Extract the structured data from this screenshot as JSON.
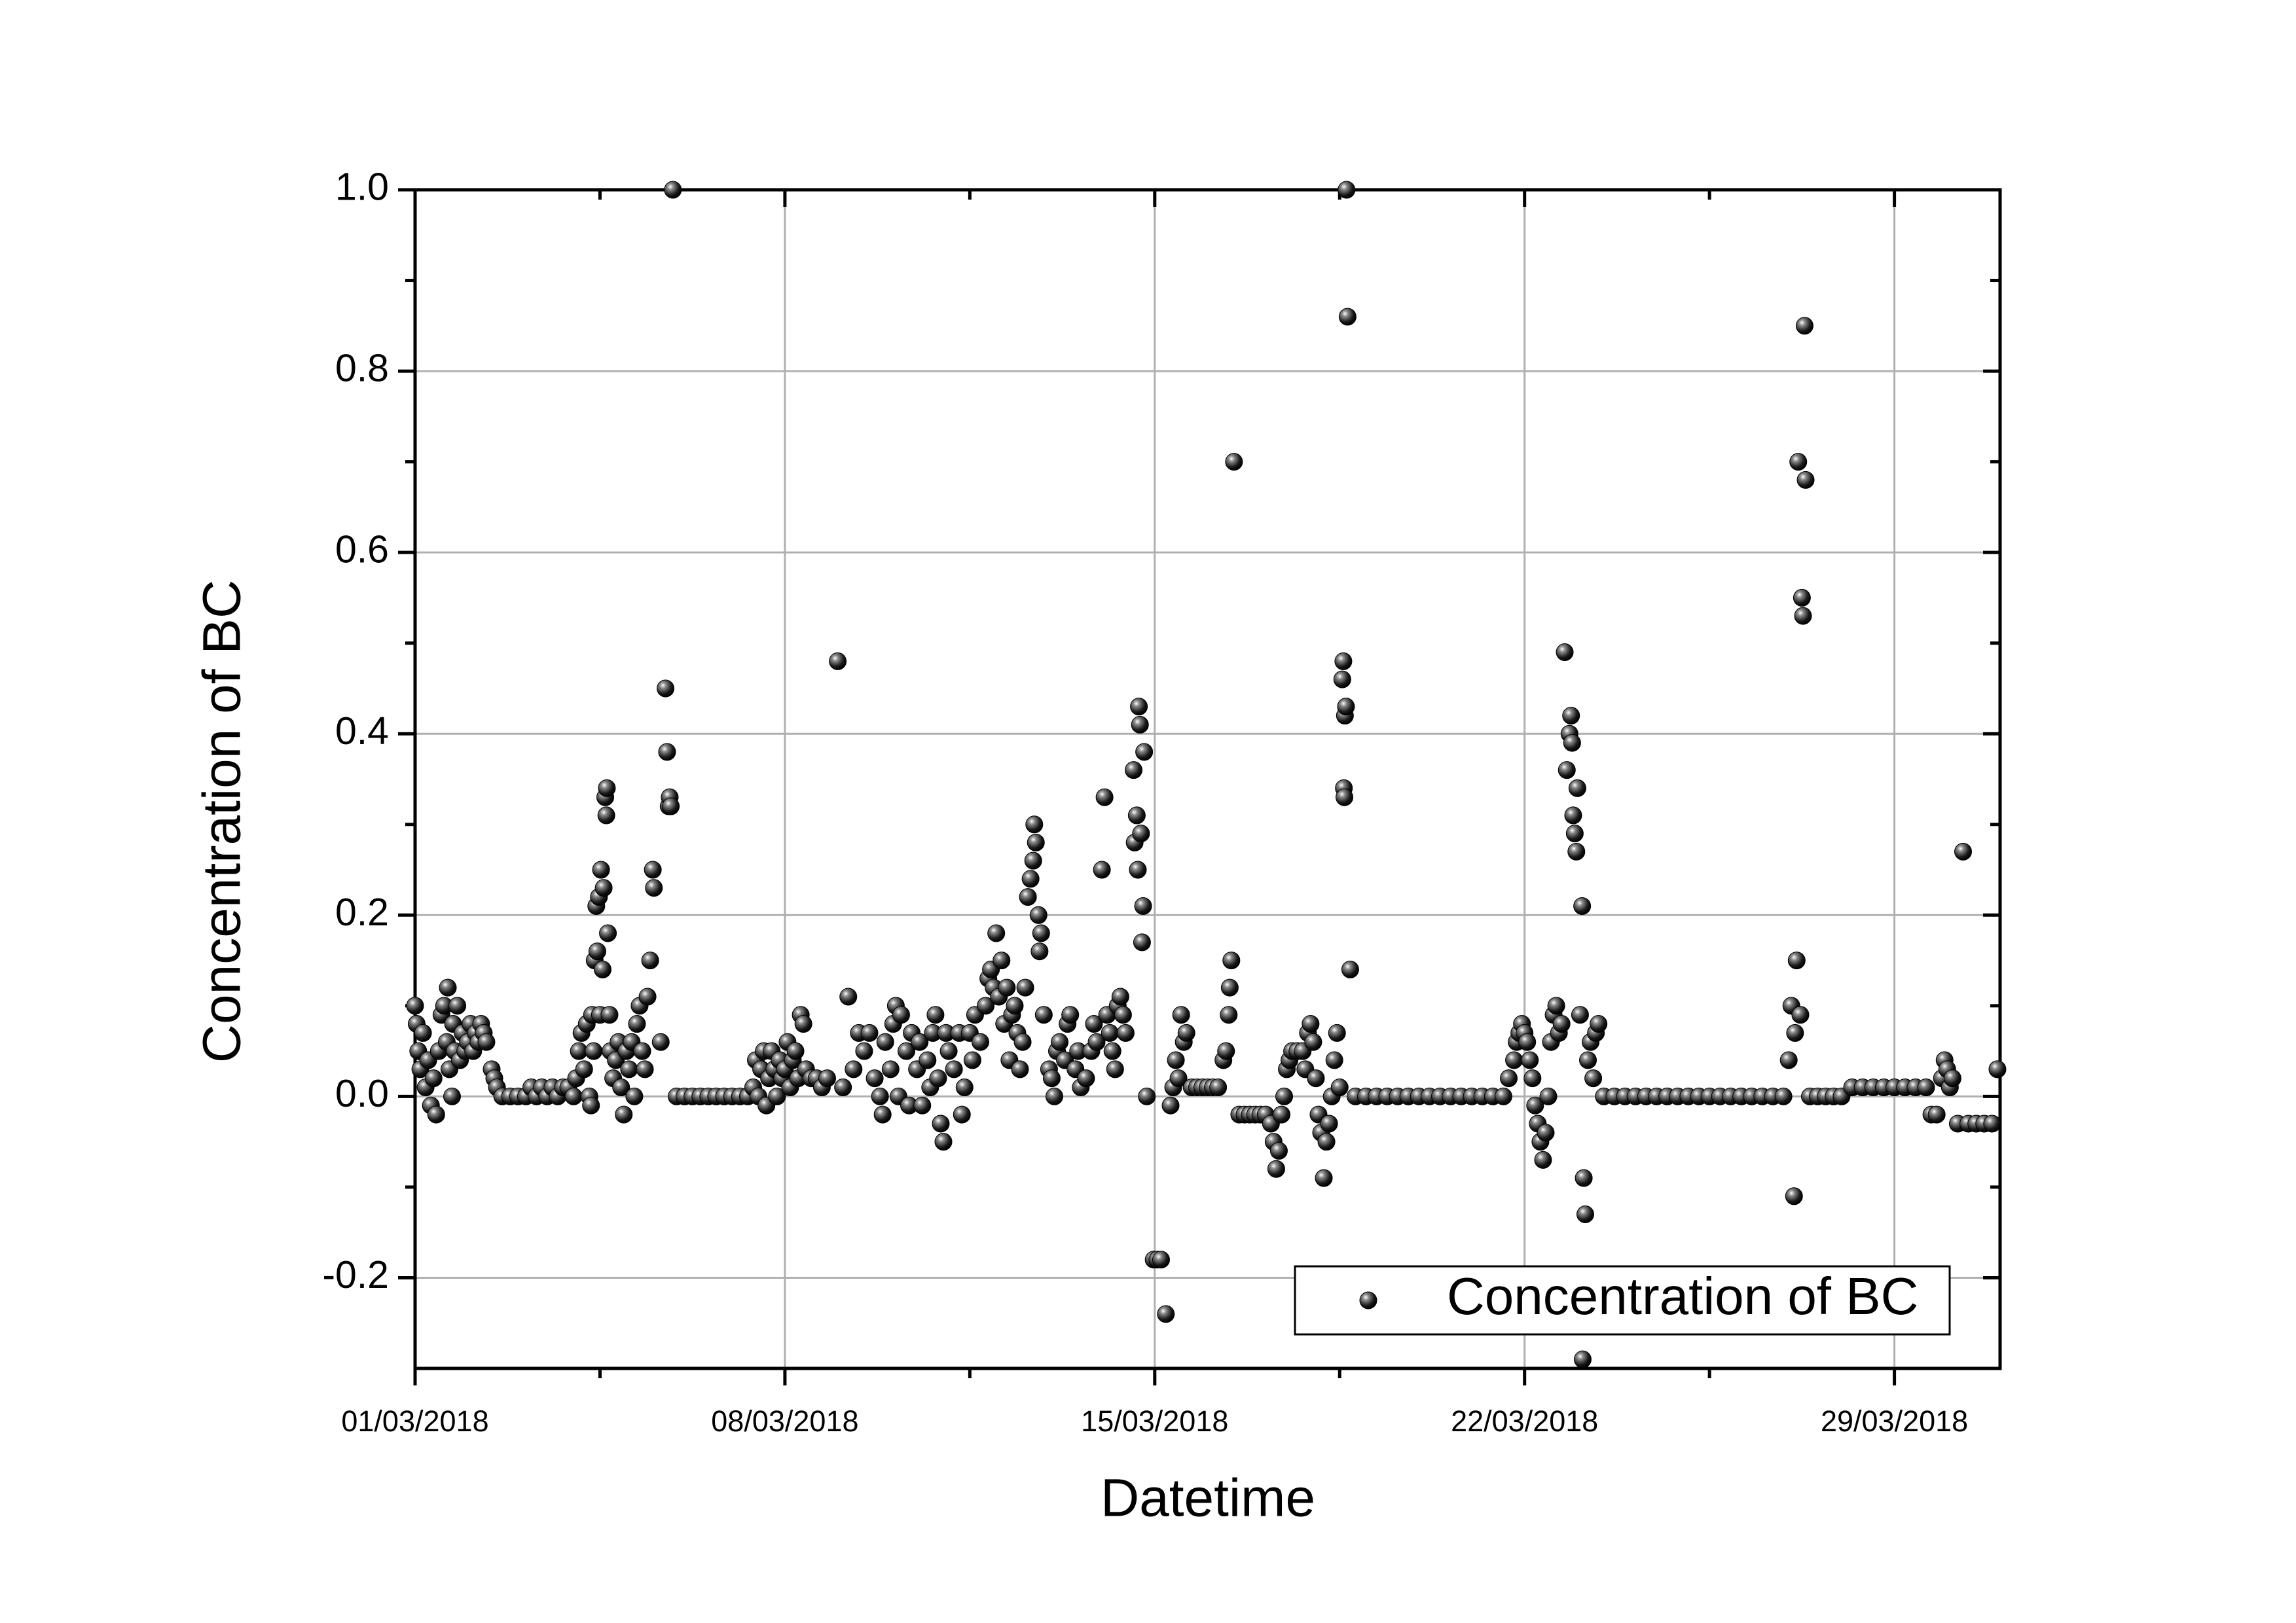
{
  "chart_data": {
    "type": "scatter",
    "xlabel": "Datetime",
    "ylabel": "Concentration of BC",
    "xlim": [
      0,
      30
    ],
    "ylim": [
      -0.3,
      1.0
    ],
    "xticks": [
      {
        "value": 0,
        "label": "01/03/2018"
      },
      {
        "value": 7,
        "label": "08/03/2018"
      },
      {
        "value": 14,
        "label": "15/03/2018"
      },
      {
        "value": 21,
        "label": "22/03/2018"
      },
      {
        "value": 28,
        "label": "29/03/2018"
      }
    ],
    "yticks": [
      -0.2,
      {
        "value": 0,
        "label": "0.0"
      },
      0.2,
      0.4,
      0.6,
      0.8,
      {
        "value": 1,
        "label": "1.0"
      }
    ],
    "grid": true,
    "legend": "lower right",
    "series": [
      {
        "name": "Concentration of BC",
        "color": "#000000",
        "x": [
          0,
          0.03,
          0.06,
          0.1,
          0.15,
          0.2,
          0.25,
          0.3,
          0.35,
          0.4,
          0.45,
          0.5,
          0.55,
          0.6,
          0.62,
          0.65,
          0.7,
          0.72,
          0.75,
          0.8,
          0.85,
          0.9,
          0.95,
          1.0,
          1.05,
          1.1,
          1.15,
          1.2,
          1.25,
          1.3,
          1.35,
          1.45,
          1.5,
          1.55,
          1.65,
          1.8,
          1.95,
          2.1,
          2.2,
          2.3,
          2.4,
          2.5,
          2.6,
          2.7,
          2.8,
          2.9,
          3.0,
          3.05,
          3.1,
          3.15,
          3.2,
          3.25,
          3.3,
          3.33,
          3.35,
          3.38,
          3.4,
          3.43,
          3.45,
          3.48,
          3.5,
          3.52,
          3.55,
          3.57,
          3.6,
          3.62,
          3.63,
          3.65,
          3.68,
          3.7,
          3.75,
          3.8,
          3.85,
          3.9,
          3.95,
          4.0,
          4.05,
          4.1,
          4.15,
          4.2,
          4.25,
          4.3,
          4.35,
          4.4,
          4.45,
          4.5,
          4.52,
          4.74,
          4.77,
          4.8,
          4.82,
          4.65,
          4.84,
          4.88,
          4.95,
          5.1,
          5.25,
          5.4,
          5.55,
          5.7,
          5.85,
          6.0,
          6.15,
          6.3,
          6.4,
          6.45,
          6.5,
          6.55,
          6.6,
          6.65,
          6.7,
          6.75,
          6.8,
          6.85,
          6.9,
          6.95,
          7.0,
          7.05,
          7.1,
          7.15,
          7.2,
          7.25,
          7.3,
          7.35,
          7.4,
          7.5,
          7.6,
          7.7,
          7.8,
          8.0,
          8.1,
          8.2,
          8.3,
          8.4,
          8.5,
          8.6,
          8.7,
          8.8,
          8.85,
          8.9,
          9.0,
          9.05,
          9.1,
          9.15,
          9.2,
          9.3,
          9.35,
          9.4,
          9.5,
          9.55,
          9.6,
          9.7,
          9.75,
          9.8,
          9.85,
          9.9,
          9.95,
          10.0,
          10.05,
          10.1,
          10.2,
          10.3,
          10.35,
          10.4,
          10.5,
          10.55,
          10.6,
          10.7,
          10.8,
          10.85,
          10.9,
          10.95,
          11.0,
          11.05,
          11.1,
          11.15,
          11.2,
          11.25,
          11.3,
          11.35,
          11.4,
          11.45,
          11.5,
          11.55,
          11.6,
          11.65,
          11.7,
          11.72,
          11.75,
          11.8,
          11.82,
          11.85,
          11.9,
          12.0,
          12.05,
          12.1,
          12.15,
          12.2,
          12.3,
          12.35,
          12.4,
          12.5,
          12.55,
          12.6,
          12.7,
          12.8,
          12.85,
          12.9,
          13.0,
          13.05,
          13.1,
          13.15,
          13.2,
          13.25,
          13.3,
          13.35,
          13.4,
          13.45,
          13.6,
          13.7,
          13.72,
          13.66,
          13.62,
          13.74,
          13.68,
          13.76,
          13.8,
          13.78,
          13.85,
          13.98,
          14.05,
          14.12,
          14.21,
          14.3,
          14.35,
          14.4,
          14.45,
          14.5,
          14.55,
          14.6,
          14.7,
          14.8,
          14.9,
          15.0,
          15.1,
          15.2,
          15.3,
          15.35,
          15.4,
          15.42,
          15.45,
          15.5,
          15.6,
          15.7,
          15.8,
          15.9,
          16.0,
          16.1,
          16.2,
          16.25,
          16.3,
          16.35,
          16.4,
          16.45,
          16.5,
          16.55,
          16.6,
          16.7,
          16.8,
          16.85,
          16.9,
          16.95,
          17.0,
          17.05,
          17.1,
          17.15,
          17.2,
          17.25,
          17.3,
          17.35,
          17.4,
          17.45,
          17.5,
          17.55,
          17.57,
          17.6,
          17.62,
          17.58,
          17.59,
          17.63,
          17.65,
          17.7,
          17.8,
          18.0,
          18.2,
          18.4,
          18.6,
          18.8,
          19.0,
          19.2,
          19.4,
          19.6,
          19.8,
          20.0,
          20.2,
          20.4,
          20.6,
          20.7,
          20.8,
          20.85,
          20.9,
          20.95,
          21.0,
          21.05,
          21.1,
          21.15,
          21.2,
          21.25,
          21.3,
          21.35,
          21.4,
          21.45,
          21.5,
          21.55,
          21.6,
          21.65,
          21.7,
          21.76,
          21.8,
          21.85,
          21.88,
          21.9,
          21.92,
          21.95,
          21.98,
          22.0,
          22.05,
          22.09,
          22.12,
          22.15,
          22.1,
          22.2,
          22.25,
          22.3,
          22.35,
          22.4,
          22.5,
          22.7,
          22.9,
          23.1,
          23.3,
          23.5,
          23.7,
          23.9,
          24.1,
          24.3,
          24.5,
          24.7,
          24.9,
          25.1,
          25.3,
          25.5,
          25.7,
          25.9,
          26.0,
          26.05,
          26.1,
          26.12,
          26.15,
          26.18,
          26.22,
          26.25,
          26.27,
          26.3,
          26.32,
          26.4,
          26.55,
          26.7,
          26.85,
          27.0,
          27.2,
          27.4,
          27.6,
          27.8,
          28.0,
          28.2,
          28.4,
          28.6,
          28.7,
          28.8,
          28.9,
          28.95,
          29.0,
          29.05,
          29.1,
          29.3,
          29.2,
          29.4,
          29.55,
          29.7,
          29.85,
          29.95
        ],
        "values": [
          0.1,
          0.08,
          0.05,
          0.03,
          0.07,
          0.01,
          0.04,
          -0.01,
          0.02,
          -0.02,
          0.05,
          0.09,
          0.1,
          0.06,
          0.12,
          0.03,
          0.0,
          0.08,
          0.05,
          0.1,
          0.04,
          0.07,
          0.05,
          0.06,
          0.08,
          0.05,
          0.07,
          0.06,
          0.08,
          0.07,
          0.06,
          0.03,
          0.02,
          0.01,
          0.0,
          0.0,
          0.0,
          0.0,
          0.01,
          0.0,
          0.01,
          0.0,
          0.01,
          0.0,
          0.01,
          0.01,
          0.0,
          0.02,
          0.05,
          0.07,
          0.03,
          0.08,
          0.0,
          -0.01,
          0.09,
          0.05,
          0.15,
          0.21,
          0.16,
          0.22,
          0.09,
          0.25,
          0.14,
          0.23,
          0.33,
          0.31,
          0.34,
          0.18,
          0.09,
          0.05,
          0.02,
          0.04,
          0.06,
          0.01,
          -0.02,
          0.05,
          0.03,
          0.06,
          0.0,
          0.08,
          0.1,
          0.05,
          0.03,
          0.11,
          0.15,
          0.25,
          0.23,
          0.45,
          0.38,
          0.32,
          0.33,
          0.06,
          0.32,
          1.0,
          0,
          0,
          0,
          0,
          0,
          0,
          0,
          0,
          0,
          0,
          0.01,
          0.04,
          0.0,
          0.03,
          0.05,
          -0.01,
          0.02,
          0.05,
          0.03,
          0.0,
          0.04,
          0.02,
          0.03,
          0.06,
          0.01,
          0.04,
          0.05,
          0.02,
          0.09,
          0.08,
          0.03,
          0.02,
          0.02,
          0.01,
          0.02,
          0.48,
          0.01,
          0.11,
          0.03,
          0.07,
          0.05,
          0.07,
          0.02,
          0.0,
          -0.02,
          0.06,
          0.03,
          0.08,
          0.1,
          0.0,
          0.09,
          0.05,
          -0.01,
          0.07,
          0.03,
          0.06,
          -0.01,
          0.04,
          0.01,
          0.07,
          0.09,
          0.02,
          -0.03,
          -0.05,
          0.07,
          0.05,
          0.03,
          0.07,
          -0.02,
          0.01,
          0.07,
          0.04,
          0.09,
          0.06,
          0.1,
          0.13,
          0.14,
          0.12,
          0.18,
          0.11,
          0.15,
          0.08,
          0.12,
          0.04,
          0.09,
          0.1,
          0.07,
          0.03,
          0.06,
          0.12,
          0.22,
          0.24,
          0.26,
          0.3,
          0.28,
          0.2,
          0.16,
          0.18,
          0.09,
          0.03,
          0.02,
          0.0,
          0.05,
          0.06,
          0.04,
          0.08,
          0.09,
          0.03,
          0.05,
          0.01,
          0.02,
          0.05,
          0.08,
          0.06,
          0.25,
          0.33,
          0.09,
          0.07,
          0.05,
          0.03,
          0.1,
          0.11,
          0.09,
          0.07,
          0.36,
          0.43,
          0.41,
          0.31,
          0.28,
          0.29,
          0.25,
          0.17,
          0.38,
          0.21,
          0.0,
          -0.18,
          -0.18,
          -0.18,
          -0.24,
          -0.01,
          0.01,
          0.04,
          0.02,
          0.09,
          0.06,
          0.07,
          0.01,
          0.01,
          0.01,
          0.01,
          0.01,
          0.01,
          0.04,
          0.05,
          0.09,
          0.12,
          0.15,
          0.7,
          -0.02,
          -0.02,
          -0.02,
          -0.02,
          -0.02,
          -0.02,
          -0.03,
          -0.05,
          -0.08,
          -0.06,
          -0.02,
          0.0,
          0.03,
          0.04,
          0.05,
          0.05,
          0.05,
          0.03,
          0.07,
          0.08,
          0.06,
          0.02,
          -0.02,
          -0.04,
          -0.09,
          -0.05,
          -0.03,
          0.0,
          0.04,
          0.07,
          0.01,
          0.46,
          0.48,
          0.42,
          0.43,
          0.34,
          0.33,
          1.0,
          0.86,
          0.14,
          0,
          0,
          0,
          0,
          0,
          0,
          0,
          0,
          0,
          0,
          0,
          0,
          0,
          0,
          0,
          0.02,
          0.04,
          0.06,
          0.07,
          0.08,
          0.07,
          0.06,
          0.04,
          0.02,
          -0.01,
          -0.03,
          -0.05,
          -0.07,
          -0.04,
          0.0,
          0.06,
          0.09,
          0.1,
          0.07,
          0.08,
          0.49,
          0.36,
          0.4,
          0.42,
          0.39,
          0.31,
          0.29,
          0.27,
          0.34,
          0.09,
          0.21,
          -0.09,
          -0.13,
          -0.29,
          0.04,
          0.06,
          0.02,
          0.07,
          0.08,
          0,
          0,
          0,
          0,
          0,
          0,
          0,
          0,
          0,
          0,
          0,
          0,
          0,
          0,
          0,
          0,
          0,
          0,
          0.04,
          0.1,
          -0.11,
          0.07,
          0.15,
          0.7,
          0.09,
          0.55,
          0.53,
          0.85,
          0.68,
          0,
          0,
          0,
          0,
          0,
          0.01,
          0.01,
          0.01,
          0.01,
          0.01,
          0.01,
          0.01,
          0.01,
          -0.02,
          -0.02,
          0.02,
          0.04,
          0.03,
          0.01,
          0.02,
          0.27,
          -0.03,
          -0.03,
          -0.03,
          -0.03,
          -0.03,
          0.03
        ]
      }
    ]
  }
}
